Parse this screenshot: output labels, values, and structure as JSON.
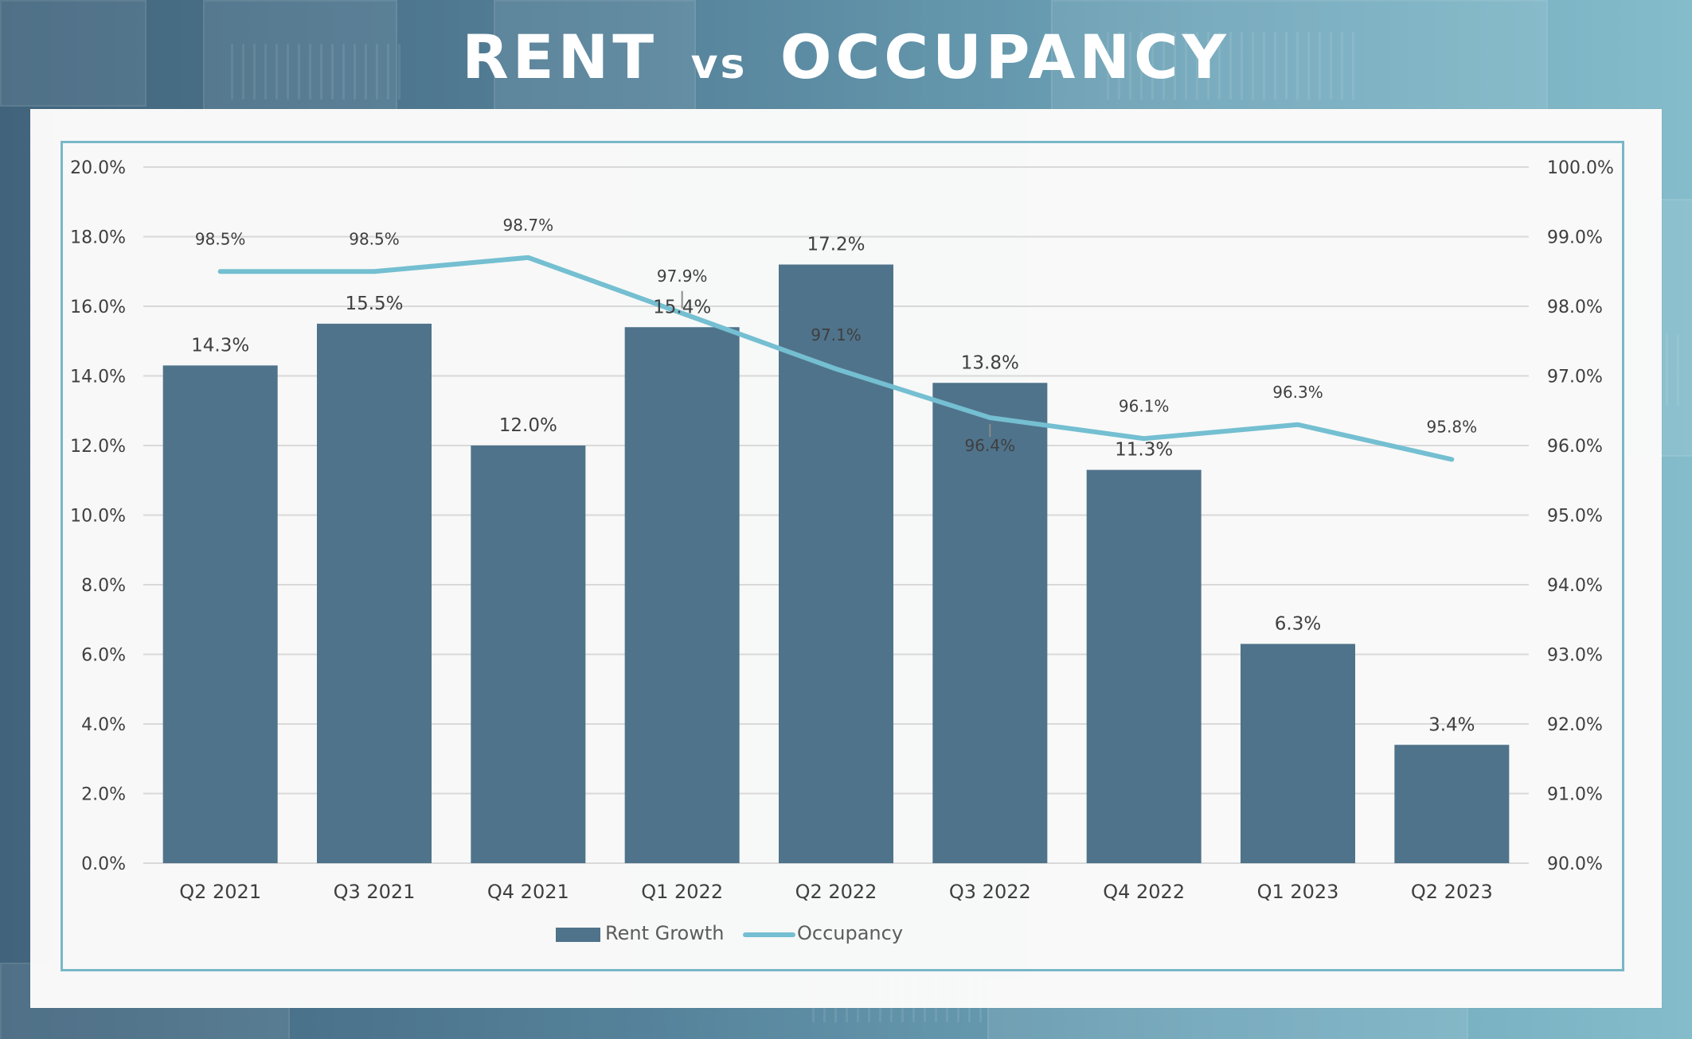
{
  "page": {
    "title_main_left": "RENT",
    "title_vs": "vs",
    "title_main_right": "OCCUPANCY"
  },
  "colors": {
    "bar": "#4f738b",
    "line": "#74bfd1",
    "grid": "#d9d9d9",
    "text": "#404040",
    "frame": "#79b7c7"
  },
  "chart_data": {
    "type": "bar",
    "categories": [
      "Q2 2021",
      "Q3 2021",
      "Q4 2021",
      "Q1 2022",
      "Q2 2022",
      "Q3 2022",
      "Q4 2022",
      "Q1 2023",
      "Q2 2023"
    ],
    "series": [
      {
        "name": "Rent Growth",
        "type": "bar",
        "axis": "left",
        "values": [
          14.3,
          15.5,
          12.0,
          15.4,
          17.2,
          13.8,
          11.3,
          6.3,
          3.4
        ],
        "labels": [
          "14.3%",
          "15.5%",
          "12.0%",
          "15.4%",
          "17.2%",
          "13.8%",
          "11.3%",
          "6.3%",
          "3.4%"
        ]
      },
      {
        "name": "Occupancy",
        "type": "line",
        "axis": "right",
        "values": [
          98.5,
          98.5,
          98.7,
          97.9,
          97.1,
          96.4,
          96.1,
          96.3,
          95.8
        ],
        "labels": [
          "98.5%",
          "98.5%",
          "98.7%",
          "97.9%",
          "97.1%",
          "96.4%",
          "96.1%",
          "96.3%",
          "95.8%"
        ]
      }
    ],
    "left_axis": {
      "range": [
        0,
        20
      ],
      "ticks": [
        "0.0%",
        "2.0%",
        "4.0%",
        "6.0%",
        "8.0%",
        "10.0%",
        "12.0%",
        "14.0%",
        "16.0%",
        "18.0%",
        "20.0%"
      ]
    },
    "right_axis": {
      "range": [
        90,
        100
      ],
      "ticks": [
        "90.0%",
        "91.0%",
        "92.0%",
        "93.0%",
        "94.0%",
        "95.0%",
        "96.0%",
        "97.0%",
        "98.0%",
        "99.0%",
        "100.0%"
      ]
    },
    "grid": true,
    "legend": {
      "placement": "bottom-center",
      "items": [
        "Rent Growth",
        "Occupancy"
      ]
    }
  }
}
